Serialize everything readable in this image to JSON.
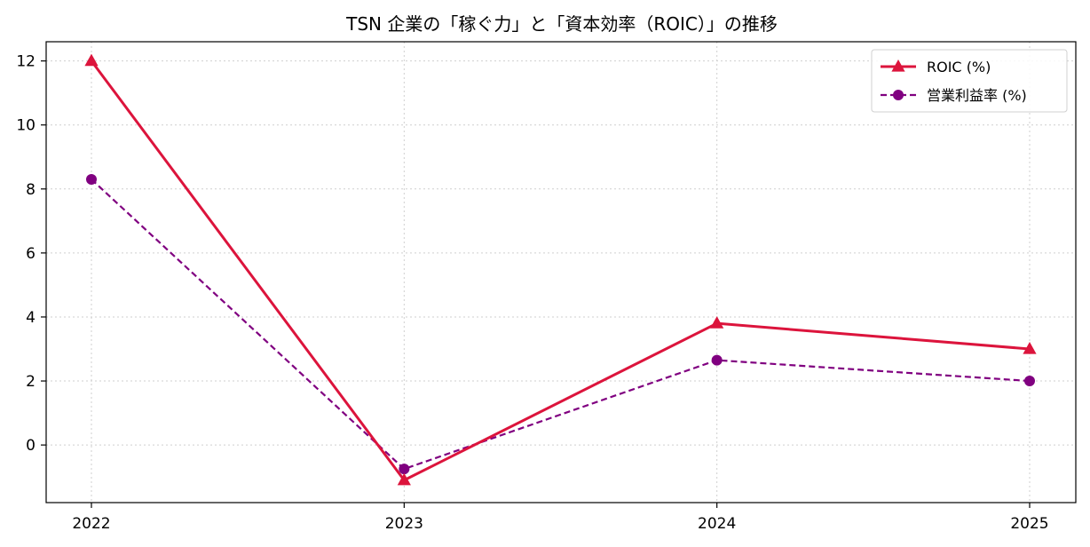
{
  "chart_data": {
    "type": "line",
    "title": "TSN 企業の「稼ぐ力」と「資本効率（ROIC）」の推移",
    "xlabel": "",
    "ylabel": "",
    "categories": [
      "2022",
      "2023",
      "2024",
      "2025"
    ],
    "ylim": [
      -1.8,
      12.6
    ],
    "yticks": [
      0,
      2,
      4,
      6,
      8,
      10,
      12
    ],
    "grid": true,
    "legend_position": "top-right",
    "series": [
      {
        "name": "ROIC (%)",
        "values": [
          12.0,
          -1.1,
          3.8,
          3.0
        ],
        "color": "#dc143c",
        "line_style": "solid",
        "marker": "triangle"
      },
      {
        "name": "営業利益率 (%)",
        "values": [
          8.3,
          -0.75,
          2.65,
          2.0
        ],
        "color": "#800080",
        "line_style": "dashed",
        "marker": "circle"
      }
    ]
  }
}
